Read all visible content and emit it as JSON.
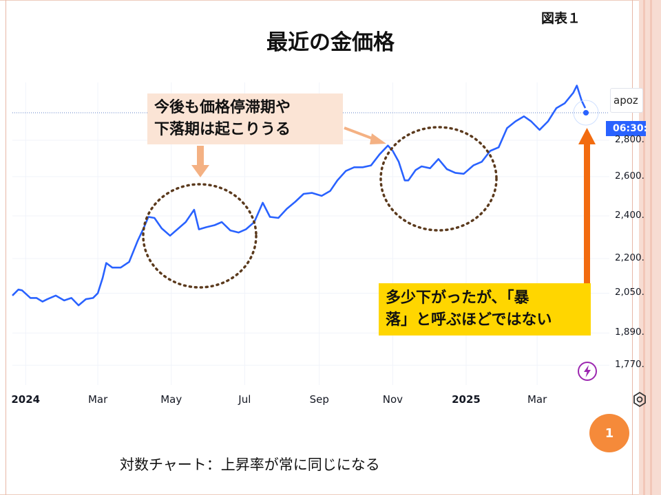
{
  "slide": {
    "figure_label": "図表１",
    "title": "最近の金価格",
    "footnote": "対数チャート：上昇率が常に同じになる",
    "page_number": "1"
  },
  "annotations": {
    "callout_1": [
      "今後も価格停滞期や",
      "下落期は起こりうる"
    ],
    "callout_2": [
      "多少下がったが、「暴",
      "落」と呼ぶほどではない"
    ]
  },
  "chart_tags": {
    "ticker": "apoz",
    "time": "06:30:"
  },
  "icons": {
    "flash": "flash-icon",
    "gear": "gear-icon"
  },
  "colors": {
    "line": "#2962ff",
    "callout_1_bg": "#fbe4d5",
    "callout_1_arrow": "#f4b183",
    "callout_2_bg": "#ffd600",
    "callout_2_arrow": "#f26b0f",
    "circle": "#5b3a1d",
    "page_badge": "#f58a3a"
  },
  "chart_data": {
    "type": "line",
    "y_scale": "log",
    "ylim": [
      1700,
      3150
    ],
    "y_ticks": [
      {
        "value": 2800,
        "label": "2,800."
      },
      {
        "value": 2600,
        "label": "2,600."
      },
      {
        "value": 2400,
        "label": "2,400."
      },
      {
        "value": 2200,
        "label": "2,200."
      },
      {
        "value": 2050,
        "label": "2,050."
      },
      {
        "value": 1890,
        "label": "1,890."
      },
      {
        "value": 1770,
        "label": "1,770."
      }
    ],
    "x_ticks": [
      {
        "date": "2024-01-01",
        "label": "2024",
        "year": true
      },
      {
        "date": "2024-03-01",
        "label": "Mar",
        "year": false
      },
      {
        "date": "2024-05-01",
        "label": "May",
        "year": false
      },
      {
        "date": "2024-07-01",
        "label": "Jul",
        "year": false
      },
      {
        "date": "2024-09-01",
        "label": "Sep",
        "year": false
      },
      {
        "date": "2024-11-01",
        "label": "Nov",
        "year": false
      },
      {
        "date": "2025-01-01",
        "label": "2025",
        "year": true
      },
      {
        "date": "2025-03-01",
        "label": "Mar",
        "year": false
      }
    ],
    "xlim": [
      "2023-12-21",
      "2025-04-30"
    ],
    "series": [
      {
        "dates": [
          "2023-12-21",
          "2023-12-26",
          "2023-12-29",
          "2024-01-05",
          "2024-01-10",
          "2024-01-15",
          "2024-01-19",
          "2024-01-26",
          "2024-02-02",
          "2024-02-08",
          "2024-02-14",
          "2024-02-20",
          "2024-02-26",
          "2024-03-01",
          "2024-03-05",
          "2024-03-08",
          "2024-03-13",
          "2024-03-20",
          "2024-03-27",
          "2024-04-03",
          "2024-04-08",
          "2024-04-12",
          "2024-04-17",
          "2024-04-23",
          "2024-04-30",
          "2024-05-06",
          "2024-05-13",
          "2024-05-20",
          "2024-05-24",
          "2024-05-30",
          "2024-06-06",
          "2024-06-12",
          "2024-06-19",
          "2024-06-26",
          "2024-07-02",
          "2024-07-09",
          "2024-07-16",
          "2024-07-22",
          "2024-07-29",
          "2024-08-05",
          "2024-08-12",
          "2024-08-19",
          "2024-08-26",
          "2024-09-03",
          "2024-09-10",
          "2024-09-16",
          "2024-09-23",
          "2024-09-30",
          "2024-10-07",
          "2024-10-14",
          "2024-10-21",
          "2024-10-28",
          "2024-11-01",
          "2024-11-06",
          "2024-11-11",
          "2024-11-14",
          "2024-11-20",
          "2024-11-25",
          "2024-12-02",
          "2024-12-09",
          "2024-12-16",
          "2024-12-23",
          "2024-12-30",
          "2025-01-07",
          "2025-01-14",
          "2025-01-21",
          "2025-01-28",
          "2025-02-04",
          "2025-02-11",
          "2025-02-18",
          "2025-02-24",
          "2025-03-03",
          "2025-03-10",
          "2025-03-17",
          "2025-03-24",
          "2025-03-31",
          "2025-04-03",
          "2025-04-07",
          "2025-04-10"
        ],
        "values": [
          2040,
          2065,
          2062,
          2030,
          2030,
          2015,
          2025,
          2040,
          2020,
          2030,
          2000,
          2025,
          2030,
          2050,
          2115,
          2180,
          2160,
          2160,
          2185,
          2280,
          2340,
          2395,
          2390,
          2340,
          2305,
          2335,
          2370,
          2430,
          2335,
          2345,
          2355,
          2370,
          2330,
          2320,
          2335,
          2370,
          2465,
          2395,
          2390,
          2435,
          2470,
          2510,
          2515,
          2500,
          2525,
          2580,
          2630,
          2650,
          2650,
          2660,
          2720,
          2770,
          2740,
          2680,
          2580,
          2580,
          2635,
          2655,
          2645,
          2695,
          2640,
          2620,
          2615,
          2660,
          2680,
          2740,
          2760,
          2870,
          2910,
          2940,
          2910,
          2860,
          2910,
          2990,
          3020,
          3085,
          3130,
          3035,
          2990
        ]
      }
    ]
  }
}
